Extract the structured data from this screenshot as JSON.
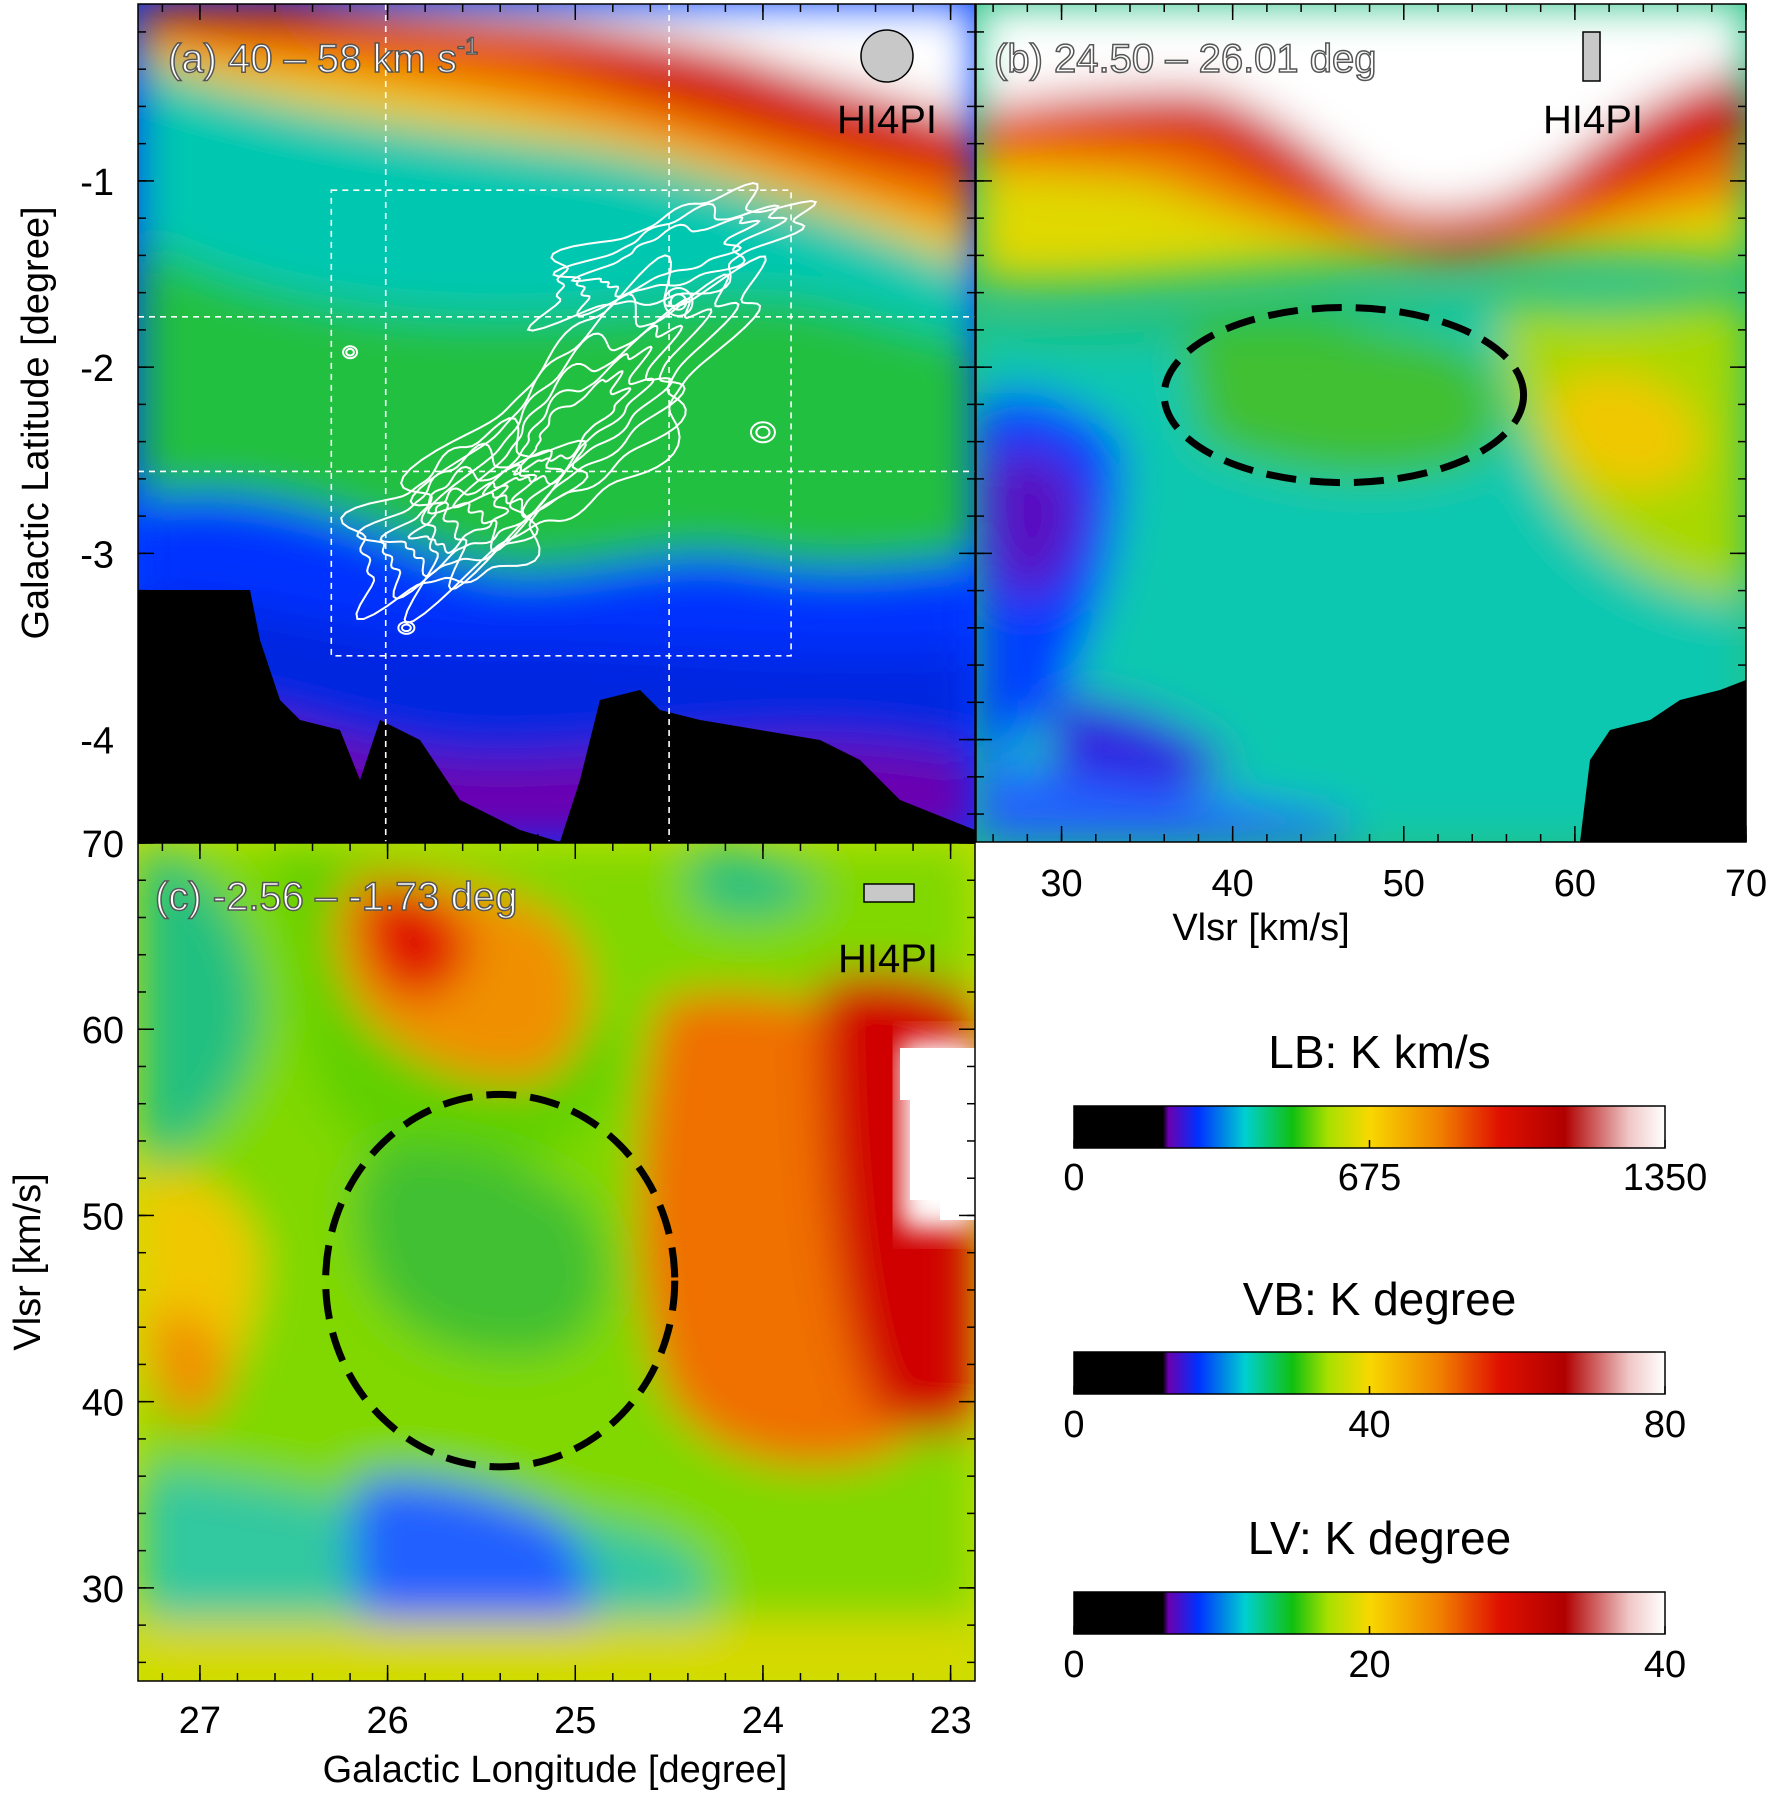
{
  "colors": {
    "colormap_stops": [
      "#000000",
      "#000000",
      "#6a00b0",
      "#0030ff",
      "#00d0d0",
      "#10c010",
      "#a8e000",
      "#f8d800",
      "#f08000",
      "#e01000",
      "#b00000",
      "#f0c8c8",
      "#ffffff"
    ],
    "map_highlight": "#ffffff",
    "contour": "#ffffff",
    "dashed_marker": "#000000",
    "beam": "#c8c8c8"
  },
  "chart_data": [
    {
      "id": "a",
      "type": "heatmap",
      "label": "(a) 40 – 58 km s",
      "label_superscript": "-1",
      "beam_label": "HI4PI",
      "beam_shape": "circle",
      "ylabel": "Galactic Latitude [degree]",
      "xlim": [
        27.33,
        22.87
      ],
      "ylim": [
        -4.55,
        -0.05
      ],
      "yticks": [
        -1,
        -2,
        -3,
        -4
      ],
      "xticks": [
        27,
        26,
        25,
        24,
        23
      ],
      "contour_box": {
        "l": [
          26.3,
          23.85
        ],
        "b": [
          -1.05,
          -3.55
        ]
      },
      "slice_l": [
        26.01,
        24.5
      ],
      "slice_b": [
        -1.73,
        -2.56
      ],
      "contour_centers": [
        {
          "l": 25.0,
          "b": -2.3
        },
        {
          "l": 25.6,
          "b": -2.8
        },
        {
          "l": 24.5,
          "b": -1.4
        }
      ]
    },
    {
      "id": "b",
      "type": "heatmap",
      "label": "(b) 24.50 – 26.01 deg",
      "beam_label": "HI4PI",
      "beam_shape": "bar",
      "xlabel": "Vlsr [km/s]",
      "xlim": [
        25,
        70
      ],
      "ylim": [
        -4.55,
        -0.05
      ],
      "xticks": [
        30,
        40,
        50,
        60,
        70
      ],
      "ellipse": {
        "v": 46.5,
        "b": -2.15,
        "dv": 10.5,
        "db": 0.47
      }
    },
    {
      "id": "c",
      "type": "heatmap",
      "label": "(c) -2.56 – -1.73 deg",
      "beam_label": "HI4PI",
      "beam_shape": "bar",
      "xlabel": "Galactic Longitude [degree]",
      "ylabel": "Vlsr [km/s]",
      "xlim": [
        27.33,
        22.87
      ],
      "ylim": [
        25,
        70
      ],
      "xticks": [
        27,
        26,
        25,
        24,
        23
      ],
      "yticks": [
        30,
        40,
        50,
        60,
        70
      ],
      "ellipse": {
        "l": 25.4,
        "v": 46.5,
        "dl": 0.93,
        "dv": 10
      }
    }
  ],
  "colorbars": [
    {
      "title": "LB: K km/s",
      "ticks": [
        "0",
        "675",
        "1350"
      ],
      "values": [
        0,
        675,
        1350
      ]
    },
    {
      "title": "VB: K degree",
      "ticks": [
        "0",
        "40",
        "80"
      ],
      "values": [
        0,
        40,
        80
      ]
    },
    {
      "title": "LV: K degree",
      "ticks": [
        "0",
        "20",
        "40"
      ],
      "values": [
        0,
        20,
        40
      ]
    }
  ]
}
